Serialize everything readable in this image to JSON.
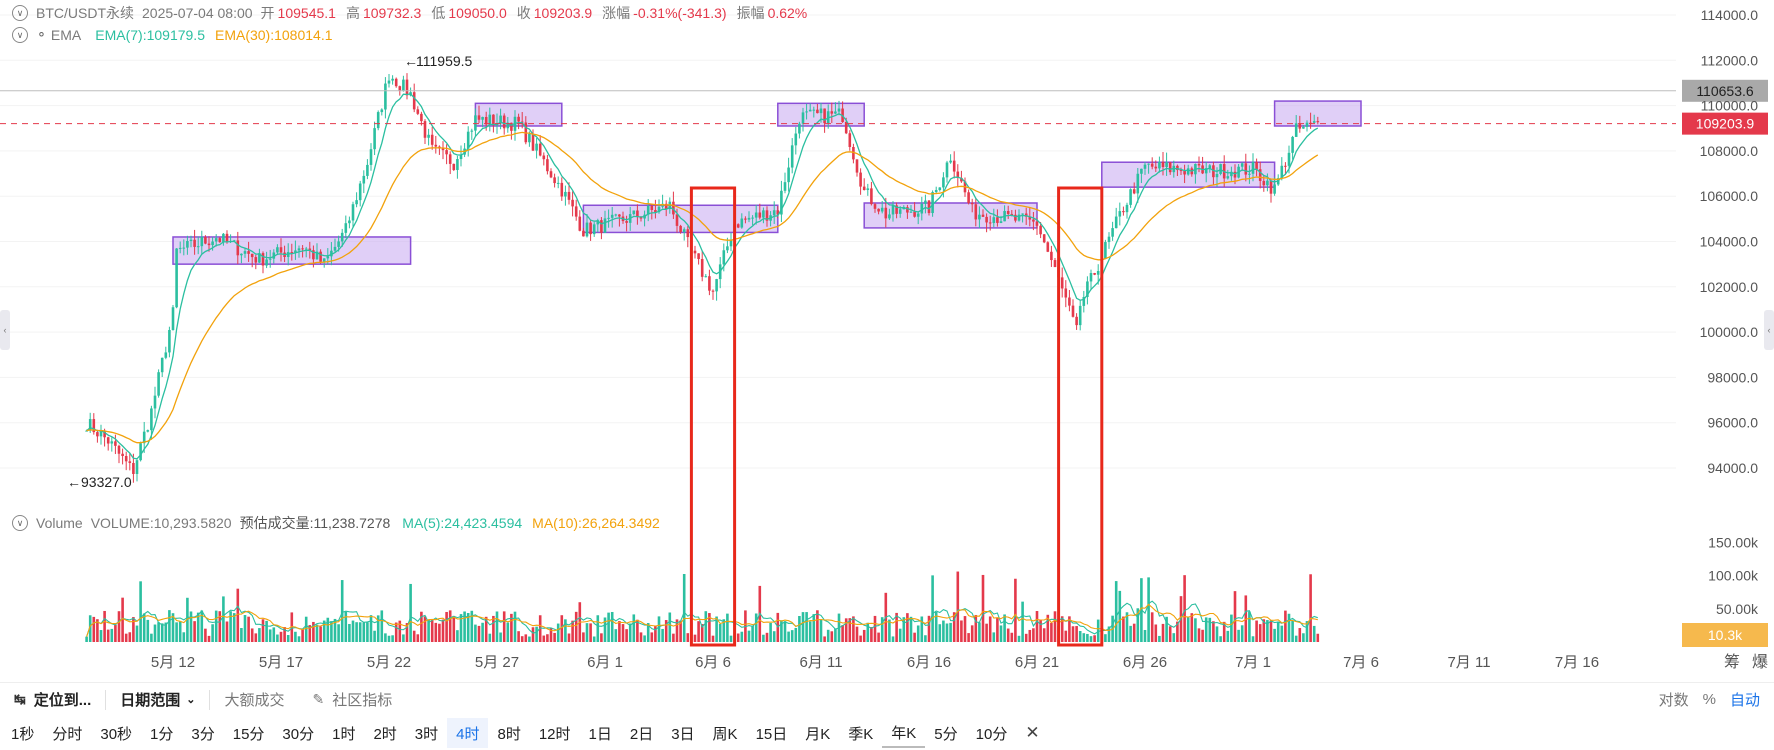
{
  "legend": {
    "symbol": "BTC/USDT永续",
    "datetime": "2025-07-04 08:00",
    "open_label": "开",
    "open": "109545.1",
    "high_label": "高",
    "high": "109732.3",
    "low_label": "低",
    "low": "109050.0",
    "close_label": "收",
    "close": "109203.9",
    "change_label": "涨幅",
    "change": "-0.31%(-341.3)",
    "amp_label": "振幅",
    "amp": "0.62%",
    "ema_label": "EMA",
    "ema7": "EMA(7):109179.5",
    "ema30": "EMA(30):108014.1",
    "vol_label": "Volume",
    "vol_value": "VOLUME:10,293.5820",
    "vol_est": "预估成交量:11,238.7278",
    "ma5": "MA(5):24,423.4594",
    "ma10": "MA(10):26,264.3492"
  },
  "toolbar": {
    "locate": "定位到...",
    "date_range": "日期范围",
    "large_trades": "大额成交",
    "community": "社区指标",
    "log": "对数",
    "percent": "%",
    "auto": "自动"
  },
  "intervals": [
    "1秒",
    "分时",
    "30秒",
    "1分",
    "3分",
    "15分",
    "30分",
    "1时",
    "2时",
    "3时",
    "4时",
    "8时",
    "12时",
    "1日",
    "2日",
    "3日",
    "周K",
    "15日",
    "月K",
    "季K",
    "年K",
    "5分",
    "10分"
  ],
  "active_interval": "4时",
  "colors": {
    "up": "#2bbfa0",
    "down": "#e4394b",
    "ema7": "#2bbfa0",
    "ema30": "#f2a20c",
    "box": "#c7a8f0",
    "red_box": "#e8281b"
  },
  "chart_data": {
    "type": "candlestick",
    "price_axis": {
      "min": 94000,
      "max": 114000,
      "step": 2000,
      "ticks": [
        "114000.0",
        "112000.0",
        "110000.0",
        "108000.0",
        "106000.0",
        "104000.0",
        "102000.0",
        "100000.0",
        "98000.0",
        "96000.0",
        "94000.0"
      ]
    },
    "price_labels": {
      "high_line": "110653.6",
      "current": "109203.9"
    },
    "annotations": {
      "max": "111959.5",
      "min": "93327.0"
    },
    "x_ticks": [
      "5月 12",
      "5月 17",
      "5月 22",
      "5月 27",
      "6月 1",
      "6月 6",
      "6月 11",
      "6月 16",
      "6月 21",
      "6月 26",
      "7月 1",
      "7月 6",
      "7月 11",
      "7月 16"
    ],
    "volume_axis": {
      "ticks": [
        "150.00k",
        "100.00k",
        "50.00k"
      ],
      "current": "10.3k"
    },
    "right_bottom": [
      "筹",
      "爆"
    ],
    "consolidation_zones": [
      {
        "from": "2025-05-12",
        "to": "2025-05-23",
        "low": 103000,
        "high": 104200
      },
      {
        "from": "2025-05-26",
        "to": "2025-05-30",
        "low": 109100,
        "high": 110100
      },
      {
        "from": "2025-05-31",
        "to": "2025-06-09",
        "low": 104400,
        "high": 105600
      },
      {
        "from": "2025-06-09",
        "to": "2025-06-13",
        "low": 109100,
        "high": 110100
      },
      {
        "from": "2025-06-13",
        "to": "2025-06-21",
        "low": 104600,
        "high": 105700
      },
      {
        "from": "2025-06-24",
        "to": "2025-07-02",
        "low": 106400,
        "high": 107500
      },
      {
        "from": "2025-07-02",
        "to": "2025-07-06",
        "low": 109100,
        "high": 110200
      }
    ],
    "spike_markers": [
      {
        "from": "2025-06-05",
        "to": "2025-06-07"
      },
      {
        "from": "2025-06-22",
        "to": "2025-06-24"
      }
    ],
    "anchors": [
      [
        "2025-05-08",
        96000
      ],
      [
        "2025-05-09",
        95200
      ],
      [
        "2025-05-10",
        94000
      ],
      [
        "2025-05-10",
        93400
      ],
      [
        "2025-05-11",
        96500
      ],
      [
        "2025-05-12",
        100800
      ],
      [
        "2025-05-12",
        103500
      ],
      [
        "2025-05-14",
        104200
      ],
      [
        "2025-05-16",
        103200
      ],
      [
        "2025-05-18",
        103800
      ],
      [
        "2025-05-19",
        103000
      ],
      [
        "2025-05-20",
        104500
      ],
      [
        "2025-05-21",
        107500
      ],
      [
        "2025-05-22",
        111400
      ],
      [
        "2025-05-23",
        110500
      ],
      [
        "2025-05-24",
        108000
      ],
      [
        "2025-05-25",
        107500
      ],
      [
        "2025-05-26",
        109400
      ],
      [
        "2025-05-28",
        109200
      ],
      [
        "2025-05-30",
        106300
      ],
      [
        "2025-05-31",
        104500
      ],
      [
        "2025-06-02",
        105000
      ],
      [
        "2025-06-04",
        105600
      ],
      [
        "2025-06-05",
        103500
      ],
      [
        "2025-06-06",
        101800
      ],
      [
        "2025-06-07",
        104800
      ],
      [
        "2025-06-09",
        105400
      ],
      [
        "2025-06-10",
        109500
      ],
      [
        "2025-06-12",
        109600
      ],
      [
        "2025-06-13",
        106200
      ],
      [
        "2025-06-14",
        105200
      ],
      [
        "2025-06-16",
        105500
      ],
      [
        "2025-06-17",
        107800
      ],
      [
        "2025-06-18",
        105300
      ],
      [
        "2025-06-21",
        104800
      ],
      [
        "2025-06-22",
        102300
      ],
      [
        "2025-06-23",
        99500
      ],
      [
        "2025-06-23",
        101200
      ],
      [
        "2025-06-25",
        105500
      ],
      [
        "2025-06-26",
        107300
      ],
      [
        "2025-06-29",
        107100
      ],
      [
        "2025-07-01",
        107200
      ],
      [
        "2025-07-02",
        106300
      ],
      [
        "2025-07-03",
        108900
      ],
      [
        "2025-07-04",
        109200
      ]
    ]
  }
}
